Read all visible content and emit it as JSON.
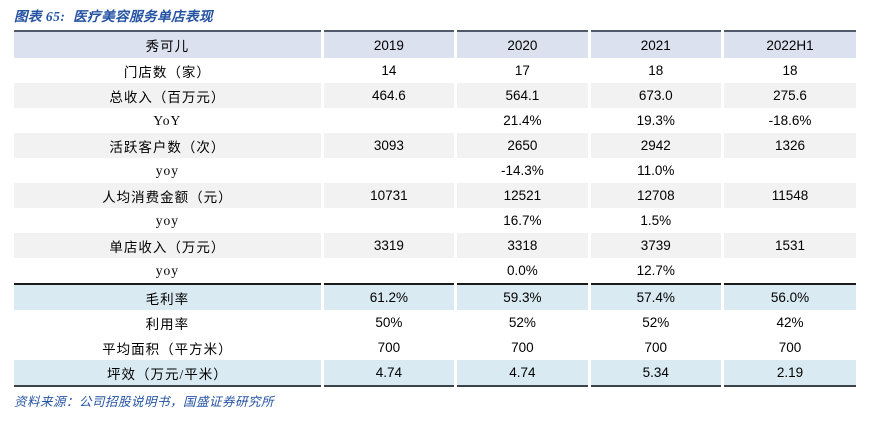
{
  "title": "图表 65:  医疗美容服务单店表现",
  "source": "资料来源：公司招股说明书，国盛证券研究所",
  "colors": {
    "title_text": "#2553a3",
    "source_text": "#2553a3",
    "header_bg": "#dbe1ee",
    "zebra_gray_bg": "#f2f2f2",
    "highlight_blue_bg": "#d9eaf2",
    "table_top_border": "#505a6b",
    "table_bottom_border": "#3c4248",
    "rule_border": "#1a1a1a"
  },
  "chart_data": {
    "type": "table",
    "title": "医疗美容服务单店表现",
    "columns": [
      "秀可儿",
      "2019",
      "2020",
      "2021",
      "2022H1"
    ],
    "rows": [
      {
        "label": "门店数（家）",
        "values": [
          "14",
          "17",
          "18",
          "18"
        ],
        "style": "white"
      },
      {
        "label": "总收入（百万元）",
        "values": [
          "464.6",
          "564.1",
          "673.0",
          "275.6"
        ],
        "style": "gray"
      },
      {
        "label": "YoY",
        "values": [
          "",
          "21.4%",
          "19.3%",
          "-18.6%"
        ],
        "style": "white"
      },
      {
        "label": "活跃客户数（次）",
        "values": [
          "3093",
          "2650",
          "2942",
          "1326"
        ],
        "style": "gray"
      },
      {
        "label": "yoy",
        "values": [
          "",
          "-14.3%",
          "11.0%",
          ""
        ],
        "style": "white"
      },
      {
        "label": "人均消费金额（元）",
        "values": [
          "10731",
          "12521",
          "12708",
          "11548"
        ],
        "style": "gray"
      },
      {
        "label": "yoy",
        "values": [
          "",
          "16.7%",
          "1.5%",
          ""
        ],
        "style": "white"
      },
      {
        "label": "单店收入（万元）",
        "values": [
          "3319",
          "3318",
          "3739",
          "1531"
        ],
        "style": "gray"
      },
      {
        "label": "yoy",
        "values": [
          "",
          "0.0%",
          "12.7%",
          ""
        ],
        "style": "white"
      },
      {
        "label": "毛利率",
        "values": [
          "61.2%",
          "59.3%",
          "57.4%",
          "56.0%"
        ],
        "style": "highlight rule-top"
      },
      {
        "label": "利用率",
        "values": [
          "50%",
          "52%",
          "52%",
          "42%"
        ],
        "style": "white"
      },
      {
        "label": "平均面积（平方米）",
        "values": [
          "700",
          "700",
          "700",
          "700"
        ],
        "style": "white"
      },
      {
        "label": "坪效（万元/平米）",
        "values": [
          "4.74",
          "4.74",
          "5.34",
          "2.19"
        ],
        "style": "highlight"
      }
    ]
  }
}
